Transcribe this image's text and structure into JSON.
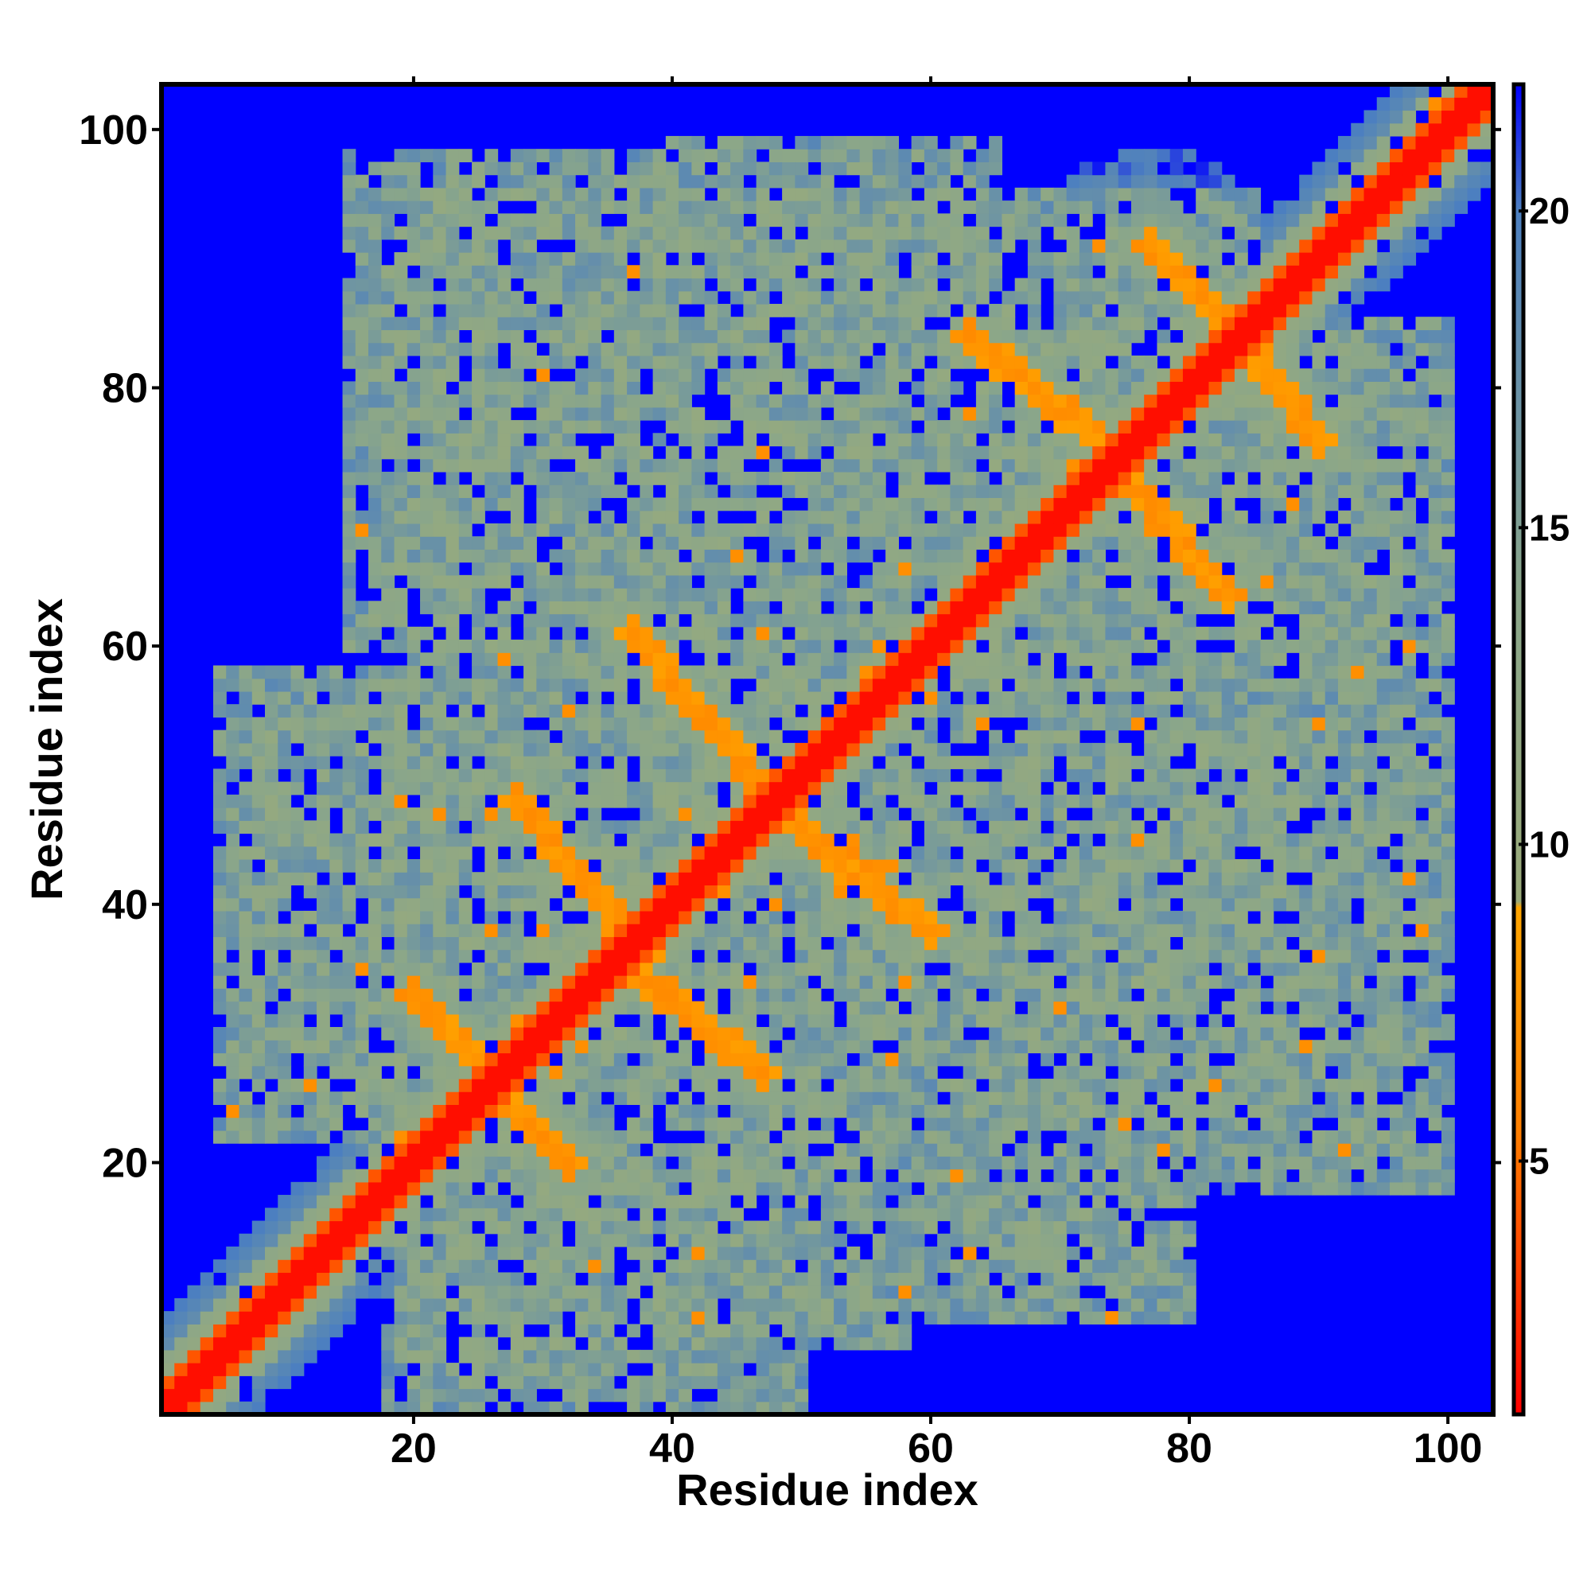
{
  "chart_data": {
    "type": "heatmap",
    "title": "",
    "xlabel": "Residue index",
    "ylabel": "Residue index",
    "n": 103,
    "xlim": [
      1,
      103
    ],
    "ylim": [
      1,
      103
    ],
    "x_ticks": [
      20,
      40,
      60,
      80,
      100
    ],
    "y_ticks": [
      20,
      40,
      60,
      80,
      100
    ],
    "x_tick_labels": [
      "20",
      "40",
      "60",
      "80",
      "100"
    ],
    "y_tick_labels": [
      "20",
      "40",
      "60",
      "80",
      "100"
    ],
    "colorbar": {
      "ticks": [
        5,
        10,
        15,
        20
      ],
      "tick_labels": [
        "5",
        "10",
        "15",
        "20"
      ],
      "range": [
        1,
        22
      ],
      "stops": [
        {
          "value": 1,
          "color": "#ff0000"
        },
        {
          "value": 5.5,
          "color": "#ff7f00"
        },
        {
          "value": 9,
          "color": "#ffa500"
        },
        {
          "value": 9.1,
          "color": "#9aab7a"
        },
        {
          "value": 14,
          "color": "#8aa68a"
        },
        {
          "value": 20,
          "color": "#4c7fc0"
        },
        {
          "value": 22,
          "color": "#0000ff"
        }
      ]
    },
    "background_color": "#0000ff",
    "grid": false,
    "legend": "colorbar-right",
    "structure": {
      "diagonal": "distance < 5 along the main diagonal (residue i vs i)",
      "contact_bands": [
        {
          "from": [
            20,
            33
          ],
          "to": [
            32,
            20
          ],
          "level": "close"
        },
        {
          "from": [
            28,
            48
          ],
          "to": [
            38,
            36
          ],
          "level": "close"
        },
        {
          "from": [
            37,
            61
          ],
          "to": [
            48,
            48
          ],
          "level": "close"
        },
        {
          "from": [
            47,
            48
          ],
          "to": [
            60,
            38
          ],
          "level": "close"
        },
        {
          "from": [
            37,
            35
          ],
          "to": [
            47,
            27
          ],
          "level": "close"
        },
        {
          "from": [
            63,
            84
          ],
          "to": [
            73,
            76
          ],
          "level": "close"
        },
        {
          "from": [
            77,
            91
          ],
          "to": [
            84,
            84
          ],
          "level": "close"
        },
        {
          "from": [
            84,
            84
          ],
          "to": [
            90,
            76
          ],
          "level": "close"
        },
        {
          "from": [
            76,
            72
          ],
          "to": [
            83,
            64
          ],
          "level": "close"
        }
      ],
      "neighborhood_regions": [
        {
          "x": [
            18,
            50
          ],
          "y": [
            1,
            35
          ]
        },
        {
          "x": [
            40,
            58
          ],
          "y": [
            6,
            30
          ]
        },
        {
          "x": [
            58,
            80
          ],
          "y": [
            8,
            40
          ]
        },
        {
          "x": [
            5,
            30
          ],
          "y": [
            22,
            58
          ]
        },
        {
          "x": [
            20,
            55
          ],
          "y": [
            30,
            70
          ]
        },
        {
          "x": [
            50,
            72
          ],
          "y": [
            28,
            66
          ]
        },
        {
          "x": [
            65,
            100
          ],
          "y": [
            18,
            56
          ]
        },
        {
          "x": [
            15,
            50
          ],
          "y": [
            60,
            98
          ]
        },
        {
          "x": [
            40,
            65
          ],
          "y": [
            65,
            99
          ]
        },
        {
          "x": [
            55,
            85
          ],
          "y": [
            40,
            95
          ]
        },
        {
          "x": [
            80,
            100
          ],
          "y": [
            55,
            85
          ]
        }
      ]
    }
  }
}
